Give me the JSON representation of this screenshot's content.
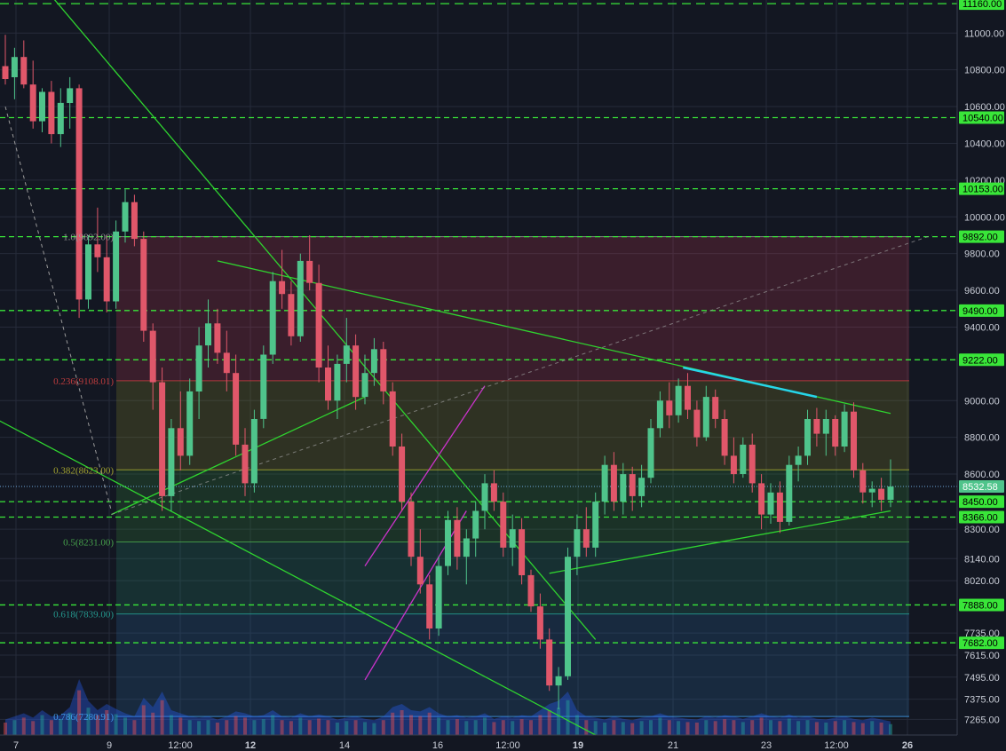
{
  "chart_data": {
    "type": "candlestick",
    "title": "",
    "xlabel": "",
    "ylabel": "",
    "ylim": [
      7180,
      11180
    ],
    "grid": true,
    "x_ticks": [
      {
        "label": "7",
        "bold": false
      },
      {
        "label": "9",
        "bold": false
      },
      {
        "label": "12:00",
        "bold": false
      },
      {
        "label": "12",
        "bold": true
      },
      {
        "label": "14",
        "bold": false
      },
      {
        "label": "16",
        "bold": false
      },
      {
        "label": "12:00",
        "bold": false
      },
      {
        "label": "19",
        "bold": true
      },
      {
        "label": "21",
        "bold": false
      },
      {
        "label": "23",
        "bold": false
      },
      {
        "label": "12:00",
        "bold": false
      },
      {
        "label": "26",
        "bold": true
      }
    ],
    "y_ticks": [
      11000,
      10800,
      10600,
      10400,
      10200,
      10000,
      9800,
      9600,
      9400,
      9000,
      8800,
      8600,
      8300,
      8140,
      8020,
      7735,
      7615,
      7495,
      7375,
      7265
    ],
    "y_tick_labels": [
      "11000.00",
      "10800.00",
      "10600.00",
      "10400.00",
      "10200.00",
      "10000.00",
      "9800.00",
      "9600.00",
      "9400.00",
      "9000.00",
      "8800.00",
      "8600.00",
      "8300.00",
      "8140.00",
      "8020.00",
      "7735.00",
      "7615.00",
      "7495.00",
      "7375.00",
      "7265.00"
    ],
    "horizontal_levels": [
      {
        "value": 11160,
        "label": "11160.00"
      },
      {
        "value": 10540,
        "label": "10540.00"
      },
      {
        "value": 10153,
        "label": "10153.00"
      },
      {
        "value": 9892,
        "label": "9892.00"
      },
      {
        "value": 9490,
        "label": "9490.00"
      },
      {
        "value": 9222,
        "label": "9222.00"
      },
      {
        "value": 8450,
        "label": "8450.00"
      },
      {
        "value": 8366,
        "label": "8366.00"
      },
      {
        "value": 7888,
        "label": "7888.00"
      },
      {
        "value": 7682,
        "label": "7682.00"
      }
    ],
    "current_price": {
      "value": 8532.58,
      "label": "8532.58"
    },
    "fibonacci": [
      {
        "label": "1.0(9892.00)",
        "value": 9892
      },
      {
        "label": "0.236(9108.01)",
        "value": 9108
      },
      {
        "label": "0.382(8623.00)",
        "value": 8623
      },
      {
        "label": "0.5(8231.00)",
        "value": 8231
      },
      {
        "label": "0.618(7839.00)",
        "value": 7839
      },
      {
        "label": "0.786(7280.91)",
        "value": 7281
      }
    ],
    "colors": {
      "up": "#4fc48b",
      "down": "#e0576a",
      "level": "#39e639",
      "trendline": "#2fd42f",
      "channel": "#cc33cc",
      "highlight": "#26d5e8",
      "background": "#131722",
      "grid": "#262b3a"
    },
    "candles": [
      {
        "o": 10820,
        "h": 10990,
        "l": 10720,
        "c": 10750
      },
      {
        "o": 10760,
        "h": 10920,
        "l": 10640,
        "c": 10870
      },
      {
        "o": 10870,
        "h": 10960,
        "l": 10700,
        "c": 10720
      },
      {
        "o": 10720,
        "h": 10850,
        "l": 10480,
        "c": 10520
      },
      {
        "o": 10520,
        "h": 10700,
        "l": 10460,
        "c": 10680
      },
      {
        "o": 10680,
        "h": 10740,
        "l": 10400,
        "c": 10450
      },
      {
        "o": 10450,
        "h": 10700,
        "l": 10380,
        "c": 10620
      },
      {
        "o": 10620,
        "h": 10760,
        "l": 10480,
        "c": 10700
      },
      {
        "o": 10700,
        "h": 10720,
        "l": 9450,
        "c": 9550
      },
      {
        "o": 9550,
        "h": 9900,
        "l": 9500,
        "c": 9850
      },
      {
        "o": 9850,
        "h": 10050,
        "l": 9700,
        "c": 9780
      },
      {
        "o": 9780,
        "h": 9900,
        "l": 9480,
        "c": 9540
      },
      {
        "o": 9540,
        "h": 9980,
        "l": 9500,
        "c": 9920
      },
      {
        "o": 9920,
        "h": 10150,
        "l": 9860,
        "c": 10080
      },
      {
        "o": 10080,
        "h": 10120,
        "l": 9840,
        "c": 9880
      },
      {
        "o": 9880,
        "h": 9920,
        "l": 9320,
        "c": 9380
      },
      {
        "o": 9380,
        "h": 9420,
        "l": 8950,
        "c": 9100
      },
      {
        "o": 9100,
        "h": 9180,
        "l": 8400,
        "c": 8480
      },
      {
        "o": 8480,
        "h": 8900,
        "l": 8400,
        "c": 8850
      },
      {
        "o": 8850,
        "h": 9050,
        "l": 8620,
        "c": 8700
      },
      {
        "o": 8700,
        "h": 9120,
        "l": 8650,
        "c": 9050
      },
      {
        "o": 9050,
        "h": 9400,
        "l": 8900,
        "c": 9300
      },
      {
        "o": 9300,
        "h": 9550,
        "l": 9180,
        "c": 9420
      },
      {
        "o": 9420,
        "h": 9500,
        "l": 9200,
        "c": 9260
      },
      {
        "o": 9260,
        "h": 9380,
        "l": 9050,
        "c": 9150
      },
      {
        "o": 9150,
        "h": 9250,
        "l": 8700,
        "c": 8760
      },
      {
        "o": 8760,
        "h": 8850,
        "l": 8480,
        "c": 8550
      },
      {
        "o": 8550,
        "h": 8950,
        "l": 8500,
        "c": 8900
      },
      {
        "o": 8900,
        "h": 9300,
        "l": 8850,
        "c": 9250
      },
      {
        "o": 9250,
        "h": 9700,
        "l": 9200,
        "c": 9650
      },
      {
        "o": 9650,
        "h": 9820,
        "l": 9500,
        "c": 9580
      },
      {
        "o": 9580,
        "h": 9650,
        "l": 9300,
        "c": 9350
      },
      {
        "o": 9350,
        "h": 9800,
        "l": 9320,
        "c": 9760
      },
      {
        "o": 9760,
        "h": 9900,
        "l": 9600,
        "c": 9640
      },
      {
        "o": 9640,
        "h": 9740,
        "l": 9100,
        "c": 9180
      },
      {
        "o": 9180,
        "h": 9300,
        "l": 8950,
        "c": 9000
      },
      {
        "o": 9000,
        "h": 9250,
        "l": 8900,
        "c": 9200
      },
      {
        "o": 9200,
        "h": 9450,
        "l": 9100,
        "c": 9300
      },
      {
        "o": 9300,
        "h": 9360,
        "l": 8950,
        "c": 9020
      },
      {
        "o": 9020,
        "h": 9250,
        "l": 8980,
        "c": 9150
      },
      {
        "o": 9150,
        "h": 9340,
        "l": 9080,
        "c": 9280
      },
      {
        "o": 9280,
        "h": 9320,
        "l": 8980,
        "c": 9050
      },
      {
        "o": 9050,
        "h": 9100,
        "l": 8700,
        "c": 8750
      },
      {
        "o": 8750,
        "h": 8820,
        "l": 8400,
        "c": 8450
      },
      {
        "o": 8450,
        "h": 8500,
        "l": 8100,
        "c": 8150
      },
      {
        "o": 8150,
        "h": 8300,
        "l": 7950,
        "c": 8000
      },
      {
        "o": 8000,
        "h": 8050,
        "l": 7700,
        "c": 7760
      },
      {
        "o": 7760,
        "h": 8150,
        "l": 7720,
        "c": 8100
      },
      {
        "o": 8100,
        "h": 8400,
        "l": 8050,
        "c": 8350
      },
      {
        "o": 8350,
        "h": 8420,
        "l": 8080,
        "c": 8150
      },
      {
        "o": 8150,
        "h": 8300,
        "l": 8000,
        "c": 8250
      },
      {
        "o": 8250,
        "h": 8450,
        "l": 8150,
        "c": 8400
      },
      {
        "o": 8400,
        "h": 8600,
        "l": 8300,
        "c": 8550
      },
      {
        "o": 8550,
        "h": 8620,
        "l": 8400,
        "c": 8450
      },
      {
        "o": 8450,
        "h": 8500,
        "l": 8150,
        "c": 8200
      },
      {
        "o": 8200,
        "h": 8380,
        "l": 8100,
        "c": 8300
      },
      {
        "o": 8300,
        "h": 8360,
        "l": 8000,
        "c": 8050
      },
      {
        "o": 8050,
        "h": 8080,
        "l": 7850,
        "c": 7880
      },
      {
        "o": 7880,
        "h": 7950,
        "l": 7650,
        "c": 7700
      },
      {
        "o": 7700,
        "h": 7760,
        "l": 7420,
        "c": 7450
      },
      {
        "o": 7450,
        "h": 7550,
        "l": 7320,
        "c": 7500
      },
      {
        "o": 7500,
        "h": 8200,
        "l": 7480,
        "c": 8150
      },
      {
        "o": 8150,
        "h": 8380,
        "l": 8050,
        "c": 8300
      },
      {
        "o": 8300,
        "h": 8420,
        "l": 8150,
        "c": 8200
      },
      {
        "o": 8200,
        "h": 8500,
        "l": 8150,
        "c": 8450
      },
      {
        "o": 8450,
        "h": 8700,
        "l": 8380,
        "c": 8650
      },
      {
        "o": 8650,
        "h": 8720,
        "l": 8400,
        "c": 8450
      },
      {
        "o": 8450,
        "h": 8660,
        "l": 8380,
        "c": 8600
      },
      {
        "o": 8600,
        "h": 8640,
        "l": 8400,
        "c": 8480
      },
      {
        "o": 8480,
        "h": 8650,
        "l": 8420,
        "c": 8580
      },
      {
        "o": 8580,
        "h": 8900,
        "l": 8550,
        "c": 8850
      },
      {
        "o": 8850,
        "h": 9050,
        "l": 8800,
        "c": 9000
      },
      {
        "o": 9000,
        "h": 9100,
        "l": 8850,
        "c": 8920
      },
      {
        "o": 8920,
        "h": 9120,
        "l": 8880,
        "c": 9080
      },
      {
        "o": 9080,
        "h": 9150,
        "l": 8900,
        "c": 8950
      },
      {
        "o": 8950,
        "h": 9000,
        "l": 8750,
        "c": 8800
      },
      {
        "o": 8800,
        "h": 9080,
        "l": 8780,
        "c": 9020
      },
      {
        "o": 9020,
        "h": 9060,
        "l": 8850,
        "c": 8900
      },
      {
        "o": 8900,
        "h": 8950,
        "l": 8650,
        "c": 8700
      },
      {
        "o": 8700,
        "h": 8800,
        "l": 8550,
        "c": 8600
      },
      {
        "o": 8600,
        "h": 8800,
        "l": 8580,
        "c": 8760
      },
      {
        "o": 8760,
        "h": 8820,
        "l": 8500,
        "c": 8550
      },
      {
        "o": 8550,
        "h": 8600,
        "l": 8300,
        "c": 8380
      },
      {
        "o": 8380,
        "h": 8550,
        "l": 8330,
        "c": 8500
      },
      {
        "o": 8500,
        "h": 8560,
        "l": 8280,
        "c": 8340
      },
      {
        "o": 8340,
        "h": 8700,
        "l": 8320,
        "c": 8650
      },
      {
        "o": 8650,
        "h": 8750,
        "l": 8560,
        "c": 8700
      },
      {
        "o": 8700,
        "h": 8950,
        "l": 8650,
        "c": 8900
      },
      {
        "o": 8900,
        "h": 8960,
        "l": 8750,
        "c": 8820
      },
      {
        "o": 8820,
        "h": 8950,
        "l": 8700,
        "c": 8900
      },
      {
        "o": 8900,
        "h": 8920,
        "l": 8700,
        "c": 8750
      },
      {
        "o": 8750,
        "h": 8980,
        "l": 8720,
        "c": 8940
      },
      {
        "o": 8940,
        "h": 8990,
        "l": 8580,
        "c": 8620
      },
      {
        "o": 8620,
        "h": 8660,
        "l": 8440,
        "c": 8500
      },
      {
        "o": 8500,
        "h": 8560,
        "l": 8420,
        "c": 8520
      },
      {
        "o": 8520,
        "h": 8580,
        "l": 8400,
        "c": 8460
      },
      {
        "o": 8460,
        "h": 8680,
        "l": 8420,
        "c": 8532
      }
    ],
    "volume": [
      0.25,
      0.3,
      0.35,
      0.28,
      0.4,
      0.3,
      0.32,
      0.45,
      0.9,
      0.55,
      0.4,
      0.5,
      0.42,
      0.35,
      0.3,
      0.6,
      0.45,
      0.7,
      0.4,
      0.35,
      0.3,
      0.28,
      0.3,
      0.25,
      0.3,
      0.38,
      0.35,
      0.3,
      0.32,
      0.4,
      0.3,
      0.28,
      0.35,
      0.3,
      0.33,
      0.3,
      0.25,
      0.28,
      0.3,
      0.26,
      0.24,
      0.3,
      0.45,
      0.5,
      0.4,
      0.38,
      0.45,
      0.35,
      0.3,
      0.32,
      0.28,
      0.3,
      0.35,
      0.26,
      0.3,
      0.28,
      0.32,
      0.3,
      0.4,
      0.5,
      0.55,
      0.7,
      0.4,
      0.3,
      0.28,
      0.25,
      0.3,
      0.26,
      0.24,
      0.28,
      0.3,
      0.35,
      0.3,
      0.28,
      0.26,
      0.25,
      0.3,
      0.28,
      0.32,
      0.3,
      0.26,
      0.3,
      0.35,
      0.3,
      0.28,
      0.33,
      0.28,
      0.3,
      0.26,
      0.25,
      0.28,
      0.3,
      0.26,
      0.24,
      0.28,
      0.25,
      0.22
    ]
  }
}
